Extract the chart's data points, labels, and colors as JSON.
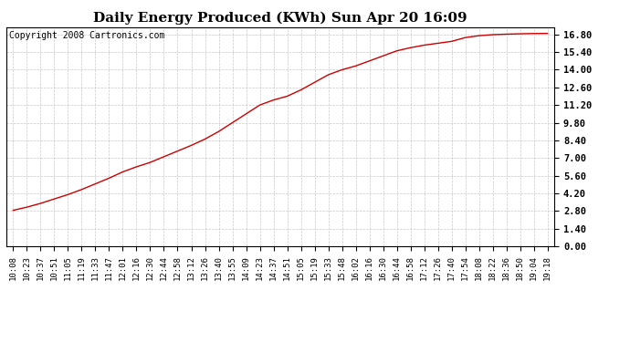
{
  "title": "Daily Energy Produced (KWh) Sun Apr 20 16:09",
  "copyright_text": "Copyright 2008 Cartronics.com",
  "line_color": "#cc0000",
  "background_color": "#ffffff",
  "grid_color": "#bbbbbb",
  "yticks": [
    0.0,
    1.4,
    2.8,
    4.2,
    5.6,
    7.0,
    8.4,
    9.8,
    11.2,
    12.6,
    14.0,
    15.4,
    16.8
  ],
  "ylim": [
    0.0,
    17.36
  ],
  "x_labels": [
    "10:08",
    "10:23",
    "10:37",
    "10:51",
    "11:05",
    "11:19",
    "11:33",
    "11:47",
    "12:01",
    "12:16",
    "12:30",
    "12:44",
    "12:58",
    "13:12",
    "13:26",
    "13:40",
    "13:55",
    "14:09",
    "14:23",
    "14:37",
    "14:51",
    "15:05",
    "15:19",
    "15:33",
    "15:48",
    "16:02",
    "16:16",
    "16:30",
    "16:44",
    "16:58",
    "17:12",
    "17:26",
    "17:40",
    "17:54",
    "18:08",
    "18:22",
    "18:36",
    "18:50",
    "19:04",
    "19:18"
  ],
  "y_values": [
    2.85,
    3.1,
    3.4,
    3.75,
    4.1,
    4.5,
    4.95,
    5.4,
    5.9,
    6.3,
    6.65,
    7.1,
    7.55,
    8.0,
    8.5,
    9.1,
    9.8,
    10.5,
    11.2,
    11.6,
    11.9,
    12.4,
    13.0,
    13.6,
    14.0,
    14.3,
    14.7,
    15.1,
    15.5,
    15.75,
    15.95,
    16.1,
    16.25,
    16.55,
    16.7,
    16.78,
    16.82,
    16.85,
    16.87,
    16.88
  ],
  "title_fontsize": 11,
  "tick_fontsize": 6.5,
  "copyright_fontsize": 7,
  "fig_width": 6.9,
  "fig_height": 3.75,
  "fig_dpi": 100
}
